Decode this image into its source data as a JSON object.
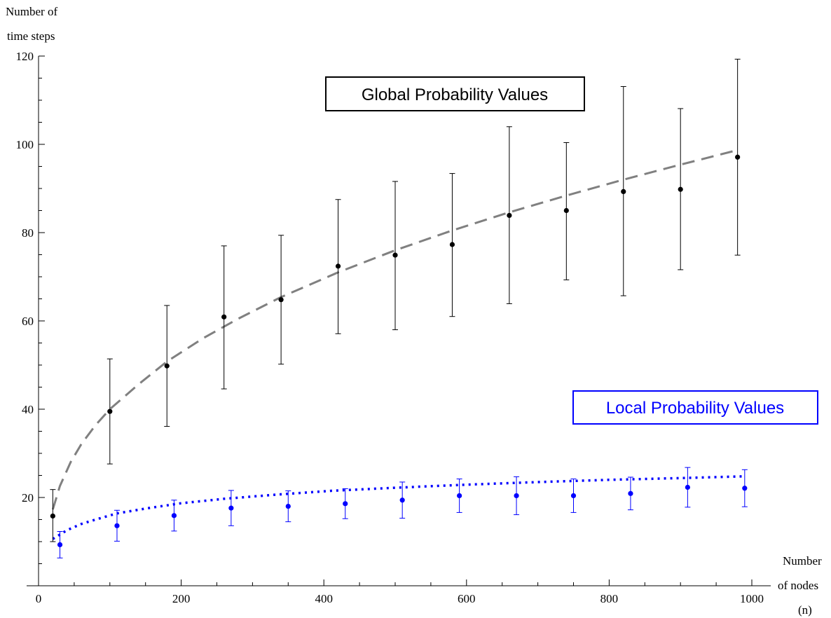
{
  "chart_data": {
    "type": "scatter",
    "title": "",
    "ylabel_lines": [
      "Number  of",
      "time  steps"
    ],
    "xlabel_lines": [
      "Number",
      "of  nodes",
      "(n)"
    ],
    "xlim": [
      0,
      1000
    ],
    "ylim": [
      0,
      120
    ],
    "x_ticks": [
      0,
      200,
      400,
      600,
      800,
      1000
    ],
    "y_ticks": [
      20,
      40,
      60,
      80,
      100,
      120
    ],
    "grid": false,
    "annotations": [
      {
        "text": "Global Probability Values",
        "color": "#000000"
      },
      {
        "text": "Local Probability Values",
        "color": "#0000ff"
      }
    ],
    "series": [
      {
        "marker_color": "#000000",
        "errorbar_color": "#000000",
        "points": [
          {
            "x": 20,
            "y": 15.8,
            "lo": 10.0,
            "hi": 21.8
          },
          {
            "x": 100,
            "y": 39.5,
            "lo": 27.6,
            "hi": 51.4
          },
          {
            "x": 180,
            "y": 49.8,
            "lo": 36.1,
            "hi": 63.5
          },
          {
            "x": 260,
            "y": 60.9,
            "lo": 44.6,
            "hi": 77.0
          },
          {
            "x": 340,
            "y": 64.8,
            "lo": 50.2,
            "hi": 79.4
          },
          {
            "x": 420,
            "y": 72.4,
            "lo": 57.1,
            "hi": 87.5
          },
          {
            "x": 500,
            "y": 74.9,
            "lo": 58.0,
            "hi": 91.6
          },
          {
            "x": 580,
            "y": 77.3,
            "lo": 61.0,
            "hi": 93.4
          },
          {
            "x": 660,
            "y": 83.9,
            "lo": 63.9,
            "hi": 104.0
          },
          {
            "x": 740,
            "y": 85.0,
            "lo": 69.3,
            "hi": 100.4
          },
          {
            "x": 820,
            "y": 89.3,
            "lo": 65.7,
            "hi": 113.1
          },
          {
            "x": 900,
            "y": 89.8,
            "lo": 71.6,
            "hi": 108.1
          },
          {
            "x": 980,
            "y": 97.1,
            "lo": 74.9,
            "hi": 119.3
          }
        ],
        "fit": {
          "style": "dashed",
          "color": "#808080",
          "x": [
            20,
            30,
            45,
            60,
            80,
            100,
            140,
            180,
            230,
            280,
            340,
            420,
            500,
            580,
            660,
            740,
            820,
            900,
            980
          ],
          "y": [
            17.3,
            22.6,
            28.0,
            32.1,
            36.4,
            40.0,
            45.6,
            50.8,
            56.0,
            60.5,
            65.4,
            71.0,
            76.0,
            80.5,
            84.6,
            88.4,
            92.0,
            95.4,
            98.7
          ]
        }
      },
      {
        "marker_color": "#0000ff",
        "errorbar_color": "#0000ff",
        "points": [
          {
            "x": 30,
            "y": 9.3,
            "lo": 6.3,
            "hi": 12.3
          },
          {
            "x": 110,
            "y": 13.6,
            "lo": 10.1,
            "hi": 17.1
          },
          {
            "x": 190,
            "y": 15.9,
            "lo": 12.4,
            "hi": 19.4
          },
          {
            "x": 270,
            "y": 17.6,
            "lo": 13.6,
            "hi": 21.6
          },
          {
            "x": 350,
            "y": 18.0,
            "lo": 14.5,
            "hi": 21.5
          },
          {
            "x": 430,
            "y": 18.6,
            "lo": 15.2,
            "hi": 22.0
          },
          {
            "x": 510,
            "y": 19.4,
            "lo": 15.3,
            "hi": 23.5
          },
          {
            "x": 590,
            "y": 20.4,
            "lo": 16.6,
            "hi": 24.2
          },
          {
            "x": 670,
            "y": 20.4,
            "lo": 16.1,
            "hi": 24.7
          },
          {
            "x": 750,
            "y": 20.4,
            "lo": 16.6,
            "hi": 24.2
          },
          {
            "x": 830,
            "y": 20.9,
            "lo": 17.2,
            "hi": 24.6
          },
          {
            "x": 910,
            "y": 22.3,
            "lo": 17.8,
            "hi": 26.8
          },
          {
            "x": 990,
            "y": 22.1,
            "lo": 17.9,
            "hi": 26.3
          }
        ],
        "fit": {
          "style": "dotted",
          "color": "#0000ff",
          "x": [
            20,
            40,
            60,
            80,
            110,
            150,
            200,
            260,
            330,
            410,
            500,
            600,
            700,
            800,
            900,
            990
          ],
          "y": [
            10.6,
            12.6,
            14.0,
            15.0,
            16.4,
            17.5,
            18.7,
            19.7,
            20.6,
            21.5,
            22.2,
            22.9,
            23.5,
            24.0,
            24.4,
            24.8
          ]
        }
      }
    ]
  }
}
